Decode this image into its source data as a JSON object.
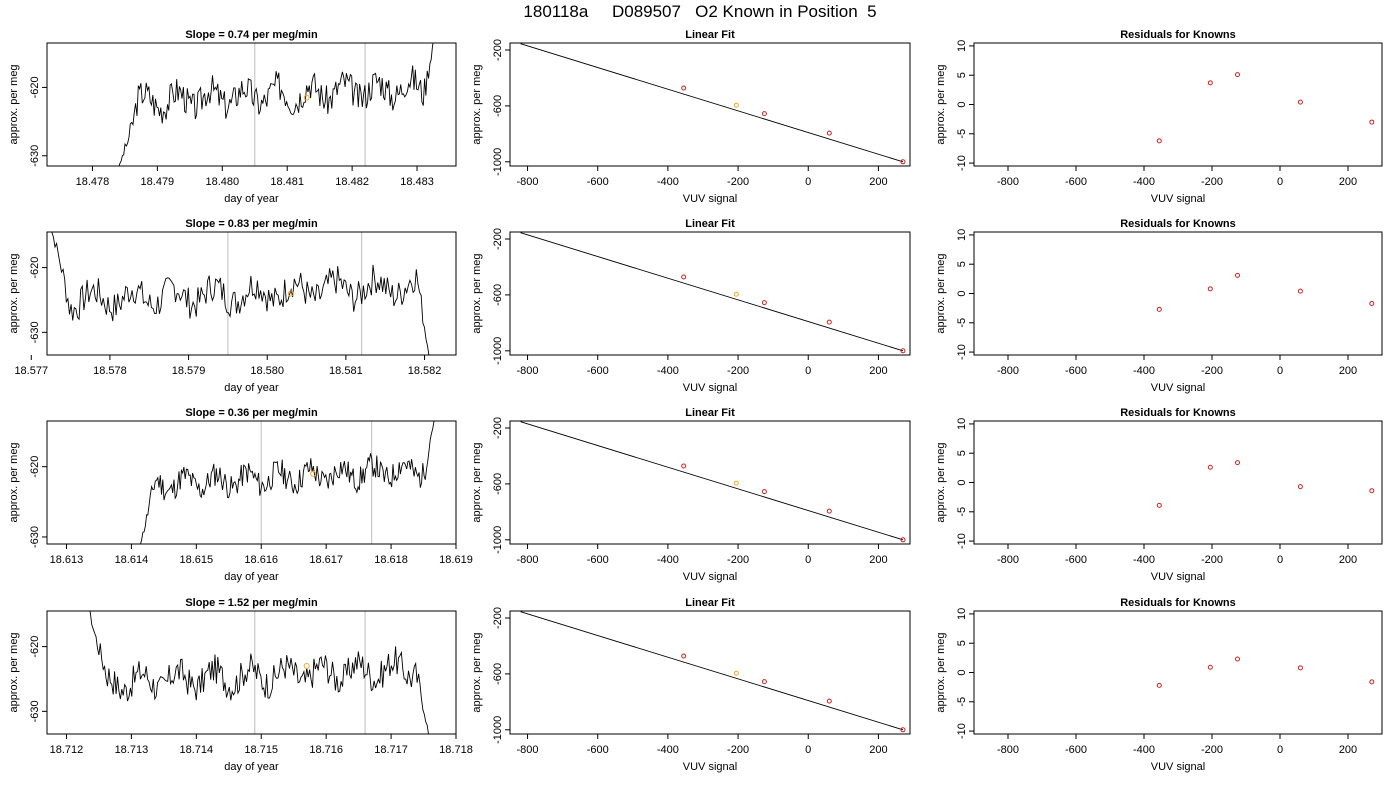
{
  "figure": {
    "title": "180118a     D089507   O2 Known in Position  5"
  },
  "colors": {
    "line": "#000000",
    "marker": "#cc2222",
    "highlight": "#f5a623",
    "vline": "#c8c8c8",
    "frame": "#000000"
  },
  "chart_data": [
    {
      "type": "line",
      "row": 0,
      "col": 0,
      "title": "Slope =  0.74  per meg/min",
      "xlabel": "day of year",
      "ylabel": "approx. per meg",
      "xlim": [
        18.4773,
        18.4836
      ],
      "ylim": [
        -631.5,
        -613.5
      ],
      "xticks": [
        18.478,
        18.479,
        18.48,
        18.481,
        18.482,
        18.483
      ],
      "xtick_labels": [
        "18.478",
        "18.479",
        "18.480",
        "18.481",
        "18.482",
        "18.483"
      ],
      "yticks": [
        -630,
        -620
      ],
      "ytick_labels": [
        "-630",
        "-620"
      ],
      "vlines": [
        18.4805,
        18.4822
      ],
      "highlight_point": {
        "x": 18.4813,
        "y": -621.5
      },
      "series": [
        {
          "x_start": 18.4784,
          "x_end": 18.4833,
          "level": -621,
          "amp": 2.2,
          "seed": 3,
          "start_y": -632,
          "end_y": -611
        }
      ]
    },
    {
      "type": "scatter",
      "row": 0,
      "col": 1,
      "title": "Linear Fit",
      "xlabel": "VUV signal",
      "ylabel": "approx. per meg",
      "xlim": [
        -850,
        290
      ],
      "ylim": [
        -1030,
        -150
      ],
      "xticks": [
        -800,
        -600,
        -400,
        -200,
        0,
        200
      ],
      "xtick_labels": [
        "-800",
        "-600",
        "-400",
        "-200",
        "0",
        "200"
      ],
      "yticks": [
        -200,
        -600,
        -1000
      ],
      "ytick_labels": [
        "-200",
        "-600",
        "-1000"
      ],
      "fit_line": [
        [
          -820,
          -155
        ],
        [
          270,
          -1000
        ]
      ],
      "points": {
        "x": [
          -355,
          -205,
          -125,
          60,
          270
        ],
        "y": [
          -472,
          -595,
          -655,
          -795,
          -1000
        ]
      },
      "highlight_index": 1
    },
    {
      "type": "scatter",
      "row": 0,
      "col": 2,
      "title": "Residuals for Knowns",
      "xlabel": "VUV signal",
      "ylabel": "approx. per meg",
      "xlim": [
        -900,
        300
      ],
      "ylim": [
        -10.5,
        10.5
      ],
      "xticks": [
        -800,
        -600,
        -400,
        -200,
        0,
        200
      ],
      "xtick_labels": [
        "-800",
        "-600",
        "-400",
        "-200",
        "0",
        "200"
      ],
      "yticks": [
        -10,
        -5,
        0,
        5,
        10
      ],
      "ytick_labels": [
        "-10",
        "-5",
        "0",
        "5",
        "10"
      ],
      "points": {
        "x": [
          -355,
          -205,
          -125,
          60,
          270
        ],
        "y": [
          -6.2,
          3.7,
          5.1,
          0.4,
          -3.0
        ]
      }
    },
    {
      "type": "line",
      "row": 1,
      "col": 0,
      "title": "Slope =  0.83  per meg/min",
      "xlabel": "day of year",
      "ylabel": "approx. per meg",
      "xlim": [
        18.5772,
        18.5824
      ],
      "ylim": [
        -633.5,
        -614.5
      ],
      "xticks": [
        18.577,
        18.578,
        18.579,
        18.58,
        18.581,
        18.582
      ],
      "xtick_labels": [
        "18.577",
        "18.578",
        "18.579",
        "18.580",
        "18.581",
        "18.582"
      ],
      "yticks": [
        -630,
        -620
      ],
      "ytick_labels": [
        "-630",
        "-620"
      ],
      "vlines": [
        18.5795,
        18.5812
      ],
      "highlight_point": {
        "x": 18.5803,
        "y": -624
      },
      "series": [
        {
          "x_start": 18.5772,
          "x_end": 18.5821,
          "level": -624,
          "amp": 2.4,
          "seed": 7,
          "start_y": -612,
          "end_y": -636,
          "dip_start": true
        }
      ]
    },
    {
      "type": "scatter",
      "row": 1,
      "col": 1,
      "title": "Linear Fit",
      "xlabel": "VUV signal",
      "ylabel": "approx. per meg",
      "xlim": [
        -850,
        290
      ],
      "ylim": [
        -1030,
        -150
      ],
      "xticks": [
        -800,
        -600,
        -400,
        -200,
        0,
        200
      ],
      "xtick_labels": [
        "-800",
        "-600",
        "-400",
        "-200",
        "0",
        "200"
      ],
      "yticks": [
        -200,
        -600,
        -1000
      ],
      "ytick_labels": [
        "-200",
        "-600",
        "-1000"
      ],
      "fit_line": [
        [
          -820,
          -155
        ],
        [
          270,
          -1000
        ]
      ],
      "points": {
        "x": [
          -355,
          -205,
          -125,
          60,
          270
        ],
        "y": [
          -472,
          -595,
          -655,
          -795,
          -1000
        ]
      },
      "highlight_index": 1
    },
    {
      "type": "scatter",
      "row": 1,
      "col": 2,
      "title": "Residuals for Knowns",
      "xlabel": "VUV signal",
      "ylabel": "approx. per meg",
      "xlim": [
        -900,
        300
      ],
      "ylim": [
        -10.5,
        10.5
      ],
      "xticks": [
        -800,
        -600,
        -400,
        -200,
        0,
        200
      ],
      "xtick_labels": [
        "-800",
        "-600",
        "-400",
        "-200",
        "0",
        "200"
      ],
      "yticks": [
        -10,
        -5,
        0,
        5,
        10
      ],
      "ytick_labels": [
        "-10",
        "-5",
        "0",
        "5",
        "10"
      ],
      "points": {
        "x": [
          -355,
          -205,
          -125,
          60,
          270
        ],
        "y": [
          -2.7,
          0.8,
          3.1,
          0.4,
          -1.7
        ]
      }
    },
    {
      "type": "line",
      "row": 2,
      "col": 0,
      "title": "Slope =  0.36  per meg/min",
      "xlabel": "day of year",
      "ylabel": "approx. per meg",
      "xlim": [
        18.6127,
        18.619
      ],
      "ylim": [
        -631,
        -613.5
      ],
      "xticks": [
        18.613,
        18.614,
        18.615,
        18.616,
        18.617,
        18.618,
        18.619
      ],
      "xtick_labels": [
        "18.613",
        "18.614",
        "18.615",
        "18.616",
        "18.617",
        "18.618",
        "18.619"
      ],
      "yticks": [
        -630,
        -620
      ],
      "ytick_labels": [
        "-630",
        "-620"
      ],
      "vlines": [
        18.616,
        18.6177
      ],
      "highlight_point": {
        "x": 18.6168,
        "y": -621
      },
      "series": [
        {
          "x_start": 18.6141,
          "x_end": 18.6187,
          "level": -621.5,
          "amp": 1.8,
          "seed": 11,
          "start_y": -632,
          "end_y": -612
        }
      ]
    },
    {
      "type": "scatter",
      "row": 2,
      "col": 1,
      "title": "Linear Fit",
      "xlabel": "VUV signal",
      "ylabel": "approx. per meg",
      "xlim": [
        -850,
        290
      ],
      "ylim": [
        -1030,
        -150
      ],
      "xticks": [
        -800,
        -600,
        -400,
        -200,
        0,
        200
      ],
      "xtick_labels": [
        "-800",
        "-600",
        "-400",
        "-200",
        "0",
        "200"
      ],
      "yticks": [
        -200,
        -600,
        -1000
      ],
      "ytick_labels": [
        "-200",
        "-600",
        "-1000"
      ],
      "fit_line": [
        [
          -820,
          -155
        ],
        [
          270,
          -1000
        ]
      ],
      "points": {
        "x": [
          -355,
          -205,
          -125,
          60,
          270
        ],
        "y": [
          -472,
          -595,
          -655,
          -795,
          -1000
        ]
      },
      "highlight_index": 1
    },
    {
      "type": "scatter",
      "row": 2,
      "col": 2,
      "title": "Residuals for Knowns",
      "xlabel": "VUV signal",
      "ylabel": "approx. per meg",
      "xlim": [
        -900,
        300
      ],
      "ylim": [
        -10.5,
        10.5
      ],
      "xticks": [
        -800,
        -600,
        -400,
        -200,
        0,
        200
      ],
      "xtick_labels": [
        "-800",
        "-600",
        "-400",
        "-200",
        "0",
        "200"
      ],
      "yticks": [
        -10,
        -5,
        0,
        5,
        10
      ],
      "ytick_labels": [
        "-10",
        "-5",
        "0",
        "5",
        "10"
      ],
      "points": {
        "x": [
          -355,
          -205,
          -125,
          60,
          270
        ],
        "y": [
          -3.9,
          2.6,
          3.4,
          -0.7,
          -1.4
        ]
      }
    },
    {
      "type": "line",
      "row": 3,
      "col": 0,
      "title": "Slope =  1.52  per meg/min",
      "xlabel": "day of year",
      "ylabel": "approx. per meg",
      "xlim": [
        18.7117,
        18.718
      ],
      "ylim": [
        -633.5,
        -614.5
      ],
      "xticks": [
        18.712,
        18.713,
        18.714,
        18.715,
        18.716,
        18.717,
        18.718
      ],
      "xtick_labels": [
        "18.712",
        "18.713",
        "18.714",
        "18.715",
        "18.716",
        "18.717",
        "18.718"
      ],
      "yticks": [
        -630,
        -620
      ],
      "ytick_labels": [
        "-630",
        "-620"
      ],
      "vlines": [
        18.7149,
        18.7166
      ],
      "highlight_point": {
        "x": 18.7157,
        "y": -623
      },
      "series": [
        {
          "x_start": 18.7123,
          "x_end": 18.7176,
          "level": -624.5,
          "amp": 2.3,
          "seed": 17,
          "start_y": -612,
          "end_y": -635,
          "dip_start": true
        }
      ]
    },
    {
      "type": "scatter",
      "row": 3,
      "col": 1,
      "title": "Linear Fit",
      "xlabel": "VUV signal",
      "ylabel": "approx. per meg",
      "xlim": [
        -850,
        290
      ],
      "ylim": [
        -1030,
        -150
      ],
      "xticks": [
        -800,
        -600,
        -400,
        -200,
        0,
        200
      ],
      "xtick_labels": [
        "-800",
        "-600",
        "-400",
        "-200",
        "0",
        "200"
      ],
      "yticks": [
        -200,
        -600,
        -1000
      ],
      "ytick_labels": [
        "-200",
        "-600",
        "-1000"
      ],
      "fit_line": [
        [
          -820,
          -155
        ],
        [
          270,
          -1000
        ]
      ],
      "points": {
        "x": [
          -355,
          -205,
          -125,
          60,
          270
        ],
        "y": [
          -472,
          -595,
          -655,
          -795,
          -1000
        ]
      },
      "highlight_index": 1
    },
    {
      "type": "scatter",
      "row": 3,
      "col": 2,
      "title": "Residuals for Knowns",
      "xlabel": "VUV signal",
      "ylabel": "approx. per meg",
      "xlim": [
        -900,
        300
      ],
      "ylim": [
        -10.5,
        10.5
      ],
      "xticks": [
        -800,
        -600,
        -400,
        -200,
        0,
        200
      ],
      "xtick_labels": [
        "-800",
        "-600",
        "-400",
        "-200",
        "0",
        "200"
      ],
      "yticks": [
        -10,
        -5,
        0,
        5,
        10
      ],
      "ytick_labels": [
        "-10",
        "-5",
        "0",
        "5",
        "10"
      ],
      "points": {
        "x": [
          -355,
          -205,
          -125,
          60,
          270
        ],
        "y": [
          -2.2,
          0.9,
          2.3,
          0.8,
          -1.6
        ]
      }
    }
  ]
}
